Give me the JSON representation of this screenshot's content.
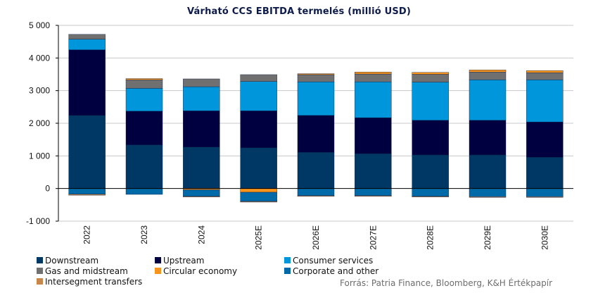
{
  "chart_data": {
    "type": "bar",
    "stacked": true,
    "title": "Várható CCS EBITDA termelés (millió USD)",
    "xlabel": "",
    "ylabel": "",
    "ylim": [
      -1000,
      5000
    ],
    "yticks": [
      5000,
      4000,
      3000,
      2000,
      1000,
      0,
      -1000
    ],
    "ytick_labels": [
      "5 000",
      "4 000",
      "3 000",
      "2 000",
      "1 000",
      "0",
      "-1 000"
    ],
    "grid": true,
    "legend_position": "bottom-left",
    "categories": [
      "2022",
      "2023",
      "2024",
      "2025E",
      "2026E",
      "2027E",
      "2028E",
      "2029E",
      "2030E"
    ],
    "series": [
      {
        "name": "Downstream",
        "color": "#003865",
        "values": [
          2240,
          1340,
          1270,
          1250,
          1110,
          1070,
          1030,
          1030,
          960
        ]
      },
      {
        "name": "Upstream",
        "color": "#000040",
        "values": [
          2010,
          1030,
          1110,
          1130,
          1130,
          1100,
          1060,
          1060,
          1080
        ]
      },
      {
        "name": "Consumer services",
        "color": "#0096db",
        "values": [
          325,
          700,
          740,
          900,
          1030,
          1100,
          1170,
          1240,
          1290
        ]
      },
      {
        "name": "Gas and midstream",
        "color": "#707070",
        "values": [
          150,
          260,
          240,
          210,
          220,
          240,
          240,
          240,
          220
        ]
      },
      {
        "name": "Circular economy",
        "color": "#f7941d",
        "values": [
          0,
          40,
          -40,
          -115,
          30,
          60,
          60,
          65,
          65
        ]
      },
      {
        "name": "Corporate and other",
        "color": "#006aa8",
        "values": [
          -175,
          -180,
          -200,
          -280,
          -220,
          -220,
          -240,
          -250,
          -250
        ]
      },
      {
        "name": "Intersegment transfers",
        "color": "#c8864a",
        "values": [
          -30,
          0,
          -20,
          -20,
          -20,
          -20,
          -20,
          -20,
          -20
        ]
      }
    ],
    "source": "Forrás: Patria Finance, Bloomberg, K&H Értékpapír"
  }
}
